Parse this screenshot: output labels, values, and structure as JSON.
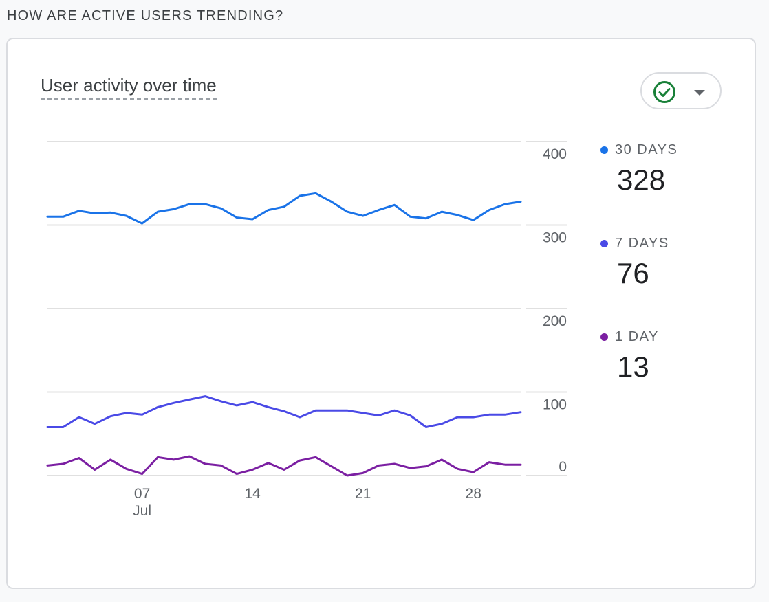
{
  "section_title": "HOW ARE ACTIVE USERS TRENDING?",
  "card": {
    "title": "User activity over time",
    "status_icon": "check-circle-icon",
    "dropdown_icon": "caret-down-icon"
  },
  "colors": {
    "series_30": "#1a73e8",
    "series_7": "#4a4ae6",
    "series_1": "#7b1fa2",
    "grid": "#e0e0e0",
    "status_green": "#188038"
  },
  "legend": [
    {
      "label": "30 DAYS",
      "value": "328",
      "color": "#1a73e8"
    },
    {
      "label": "7 DAYS",
      "value": "76",
      "color": "#4a4ae6"
    },
    {
      "label": "1 DAY",
      "value": "13",
      "color": "#7b1fa2"
    }
  ],
  "chart_data": {
    "type": "line",
    "title": "User activity over time",
    "xlabel": "",
    "ylabel": "",
    "ylim": [
      0,
      400
    ],
    "y_ticks": [
      0,
      100,
      200,
      300,
      400
    ],
    "x_ticks": [
      {
        "day": 7,
        "label": "07",
        "sublabel": "Jul"
      },
      {
        "day": 14,
        "label": "14",
        "sublabel": ""
      },
      {
        "day": 21,
        "label": "21",
        "sublabel": ""
      },
      {
        "day": 28,
        "label": "28",
        "sublabel": ""
      }
    ],
    "x_range": [
      1,
      31
    ],
    "x": [
      1,
      2,
      3,
      4,
      5,
      6,
      7,
      8,
      9,
      10,
      11,
      12,
      13,
      14,
      15,
      16,
      17,
      18,
      19,
      20,
      21,
      22,
      23,
      24,
      25,
      26,
      27,
      28,
      29,
      30,
      31
    ],
    "series": [
      {
        "name": "30 DAYS",
        "color": "#1a73e8",
        "values": [
          310,
          310,
          317,
          314,
          315,
          311,
          302,
          316,
          319,
          325,
          325,
          320,
          309,
          307,
          318,
          322,
          335,
          338,
          328,
          316,
          311,
          318,
          324,
          310,
          308,
          316,
          312,
          306,
          318,
          325,
          328
        ]
      },
      {
        "name": "7 DAYS",
        "color": "#4a4ae6",
        "values": [
          58,
          58,
          70,
          62,
          71,
          75,
          73,
          82,
          87,
          91,
          95,
          89,
          84,
          88,
          82,
          77,
          70,
          78,
          78,
          78,
          75,
          72,
          78,
          72,
          58,
          62,
          70,
          70,
          73,
          73,
          76
        ]
      },
      {
        "name": "1 DAY",
        "color": "#7b1fa2",
        "values": [
          12,
          14,
          21,
          7,
          19,
          8,
          2,
          22,
          19,
          23,
          14,
          12,
          2,
          7,
          15,
          7,
          18,
          22,
          11,
          0,
          3,
          12,
          14,
          9,
          11,
          19,
          8,
          4,
          16,
          13,
          13
        ]
      }
    ]
  }
}
